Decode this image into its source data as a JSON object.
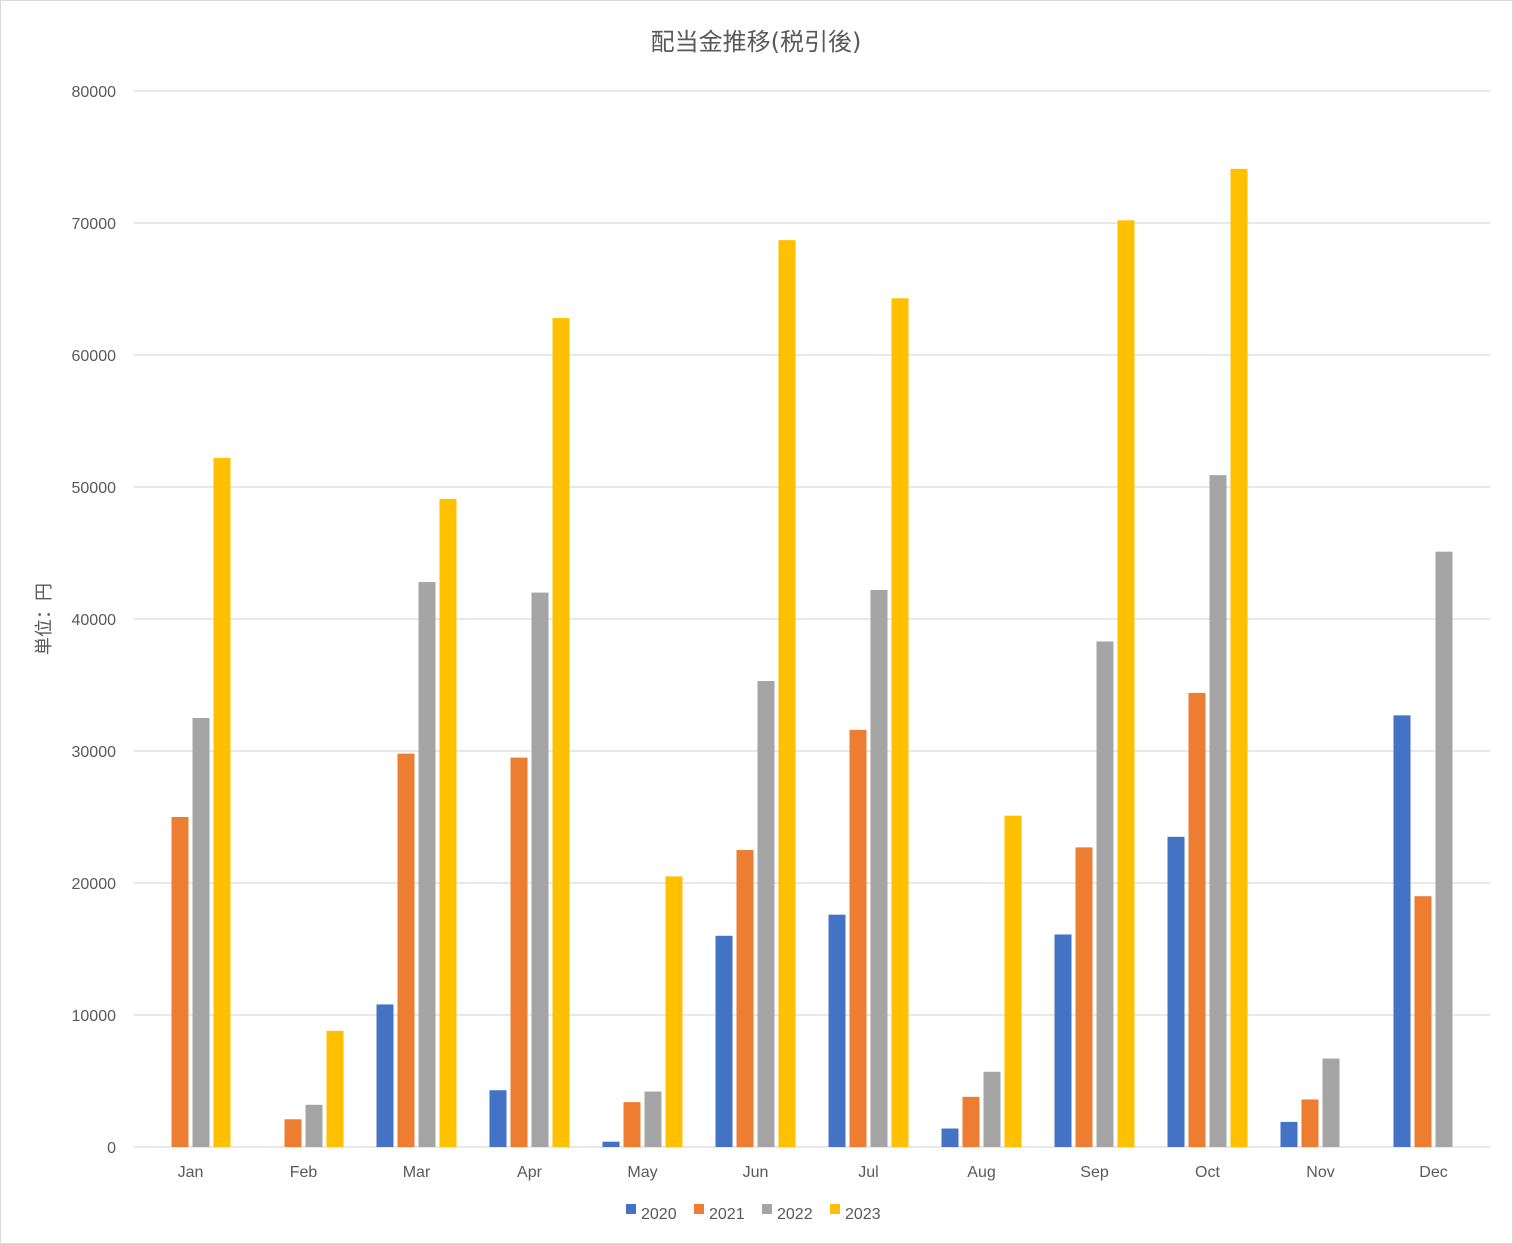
{
  "chart_data": {
    "type": "bar",
    "title": "配当金推移(税引後)",
    "ylabel": "単位：円",
    "xlabel": "",
    "ylim": [
      0,
      80000
    ],
    "yticks": [
      0,
      10000,
      20000,
      30000,
      40000,
      50000,
      60000,
      70000,
      80000
    ],
    "grid": true,
    "legend_position": "bottom",
    "categories": [
      "Jan",
      "Feb",
      "Mar",
      "Apr",
      "May",
      "Jun",
      "Jul",
      "Aug",
      "Sep",
      "Oct",
      "Nov",
      "Dec"
    ],
    "series": [
      {
        "name": "2020",
        "color": "#4472C4",
        "values": [
          0,
          0,
          10800,
          4300,
          400,
          16000,
          17600,
          1400,
          16100,
          23500,
          1900,
          32700
        ]
      },
      {
        "name": "2021",
        "color": "#ED7D31",
        "values": [
          25000,
          2100,
          29800,
          29500,
          3400,
          22500,
          31600,
          3800,
          22700,
          34400,
          3600,
          19000
        ]
      },
      {
        "name": "2022",
        "color": "#A5A5A5",
        "values": [
          32500,
          3200,
          42800,
          42000,
          4200,
          35300,
          42200,
          5700,
          38300,
          50900,
          6700,
          45100
        ]
      },
      {
        "name": "2023",
        "color": "#FFC000",
        "values": [
          52200,
          8800,
          49100,
          62800,
          20500,
          68700,
          64300,
          25100,
          70200,
          74100,
          0,
          0
        ]
      }
    ]
  }
}
